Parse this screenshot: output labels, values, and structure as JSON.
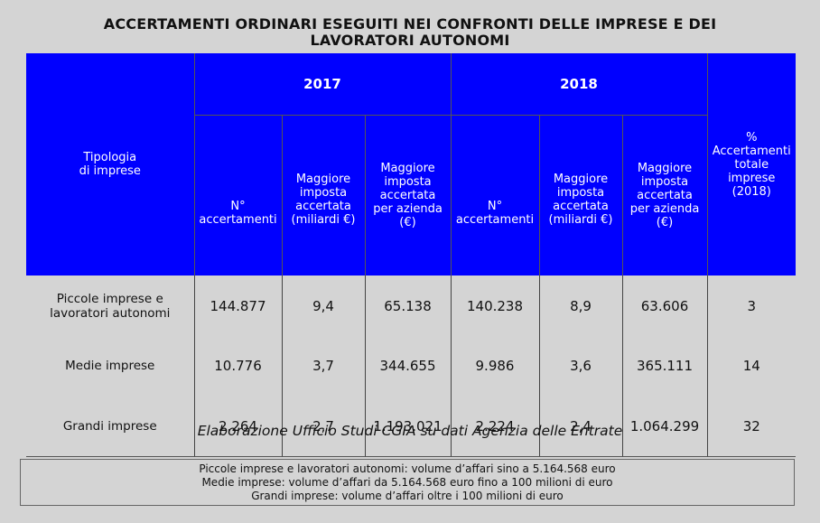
{
  "title_line1": "ACCERTAMENTI ORDINARI ESEGUITI NEI CONFRONTI DELLE IMPRESE E DEI",
  "title_line2": "LAVORATORI AUTONOMI",
  "header": {
    "tipologia_line1": "Tipologia",
    "tipologia_line2": "di imprese",
    "year_2017": "2017",
    "year_2018": "2018",
    "percent_col": [
      "%",
      "Accertamenti",
      "totale",
      "imprese",
      "(2018)"
    ],
    "sub_col_n": [
      "N°",
      "accertamenti"
    ],
    "sub_col_maggiore": [
      "Maggiore",
      "imposta",
      "accertata",
      "(miliardi €)"
    ],
    "sub_col_per_azienda": [
      "Maggiore",
      "imposta",
      "accertata",
      "per azienda",
      "(€)"
    ]
  },
  "rows": [
    {
      "label_line1": "Piccole imprese e",
      "label_line2": "lavoratori autonomi",
      "c2017_n": "144.877",
      "c2017_mag": "9,4",
      "c2017_az": "65.138",
      "c2018_n": "140.238",
      "c2018_mag": "8,9",
      "c2018_az": "63.606",
      "pct": "3"
    },
    {
      "label_line1": "Medie imprese",
      "label_line2": "",
      "c2017_n": "10.776",
      "c2017_mag": "3,7",
      "c2017_az": "344.655",
      "c2018_n": "9.986",
      "c2018_mag": "3,6",
      "c2018_az": "365.111",
      "pct": "14"
    },
    {
      "label_line1": "Grandi imprese",
      "label_line2": "",
      "c2017_n": "2.264",
      "c2017_mag": "2,7",
      "c2017_az": "1.193.021",
      "c2018_n": "2.224",
      "c2018_mag": "2,4",
      "c2018_az": "1.064.299",
      "pct": "32"
    }
  ],
  "source": "Elaborazione Ufficio Studi CGIA su dati Agenzia delle Entrate",
  "legend": [
    "Piccole imprese e lavoratori autonomi: volume d’affari sino a 5.164.568 euro",
    "Medie imprese: volume d’affari da 5.164.568 euro fino a 100 milioni di euro",
    "Grandi imprese: volume d’affari oltre i 100 milioni di euro"
  ]
}
